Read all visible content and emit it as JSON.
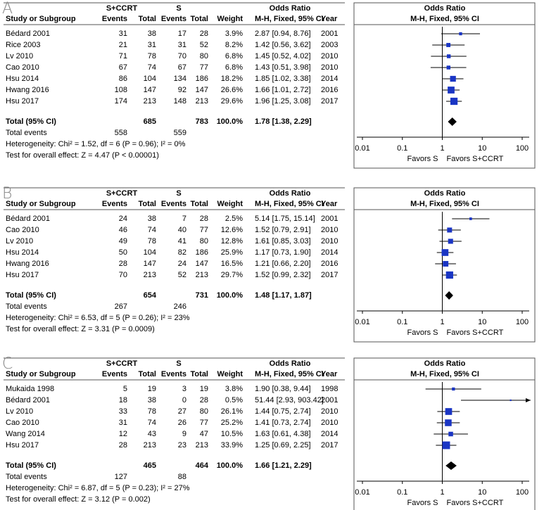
{
  "chart_data": [
    {
      "type": "forest",
      "panel": "A",
      "group1": "S+CCRT",
      "group2": "S",
      "effect_title": "Odds Ratio",
      "columns": [
        "Study or Subgroup",
        "Events",
        "Total",
        "Events",
        "Total",
        "Weight",
        "M-H, Fixed, 95% CI",
        "Year"
      ],
      "plot_title": "Odds Ratio",
      "plot_subtitle": "M-H, Fixed, 95% CI",
      "studies": [
        {
          "name": "Bédard 2001",
          "events1": 31,
          "total1": 38,
          "events2": 17,
          "total2": 28,
          "weight": 3.9,
          "weight_label": "3.9%",
          "or": 2.87,
          "lower": 0.94,
          "upper": 8.76,
          "or_label": "2.87 [0.94, 8.76]",
          "year": 2001
        },
        {
          "name": "Rice 2003",
          "events1": 21,
          "total1": 31,
          "events2": 31,
          "total2": 52,
          "weight": 8.2,
          "weight_label": "8.2%",
          "or": 1.42,
          "lower": 0.56,
          "upper": 3.62,
          "or_label": "1.42 [0.56, 3.62]",
          "year": 2003
        },
        {
          "name": "Lv 2010",
          "events1": 71,
          "total1": 78,
          "events2": 70,
          "total2": 80,
          "weight": 6.8,
          "weight_label": "6.8%",
          "or": 1.45,
          "lower": 0.52,
          "upper": 4.02,
          "or_label": "1.45 [0.52, 4.02]",
          "year": 2010
        },
        {
          "name": "Cao 2010",
          "events1": 67,
          "total1": 74,
          "events2": 67,
          "total2": 77,
          "weight": 6.8,
          "weight_label": "6.8%",
          "or": 1.43,
          "lower": 0.51,
          "upper": 3.98,
          "or_label": "1.43 [0.51, 3.98]",
          "year": 2010
        },
        {
          "name": "Hsu 2014",
          "events1": 86,
          "total1": 104,
          "events2": 134,
          "total2": 186,
          "weight": 18.2,
          "weight_label": "18.2%",
          "or": 1.85,
          "lower": 1.02,
          "upper": 3.38,
          "or_label": "1.85 [1.02, 3.38]",
          "year": 2014
        },
        {
          "name": "Hwang 2016",
          "events1": 108,
          "total1": 147,
          "events2": 92,
          "total2": 147,
          "weight": 26.6,
          "weight_label": "26.6%",
          "or": 1.66,
          "lower": 1.01,
          "upper": 2.72,
          "or_label": "1.66 [1.01, 2.72]",
          "year": 2016
        },
        {
          "name": "Hsu 2017",
          "events1": 174,
          "total1": 213,
          "events2": 148,
          "total2": 213,
          "weight": 29.6,
          "weight_label": "29.6%",
          "or": 1.96,
          "lower": 1.25,
          "upper": 3.08,
          "or_label": "1.96 [1.25, 3.08]",
          "year": 2017
        }
      ],
      "total": {
        "name": "Total (95% CI)",
        "total1": 685,
        "total2": 783,
        "weight": 100,
        "weight_label": "100.0%",
        "or": 1.78,
        "lower": 1.38,
        "upper": 2.29,
        "or_label": "1.78 [1.38, 2.29]"
      },
      "total_events": {
        "label": "Total events",
        "events1": 558,
        "events2": 559
      },
      "heterogeneity": "Heterogeneity: Chi² = 1.52, df = 6 (P = 0.96); I² = 0%",
      "overall": "Test for overall effect: Z = 4.47 (P < 0.00001)",
      "xscale": "log",
      "xlim": [
        0.01,
        100
      ],
      "xticks": [
        0.01,
        0.1,
        1,
        10,
        100
      ],
      "null_value": 1,
      "favors_left": "Favors S",
      "favors_right": "Favors S+CCRT",
      "color": "#1a35c4"
    },
    {
      "type": "forest",
      "panel": "B",
      "group1": "S+CCRT",
      "group2": "S",
      "effect_title": "Odds Ratio",
      "columns": [
        "Study or Subgroup",
        "Events",
        "Total",
        "Events",
        "Total",
        "Weight",
        "M-H, Fixed, 95% CI",
        "Year"
      ],
      "plot_title": "Odds Ratio",
      "plot_subtitle": "M-H, Fixed, 95% CI",
      "studies": [
        {
          "name": "Bédard 2001",
          "events1": 24,
          "total1": 38,
          "events2": 7,
          "total2": 28,
          "weight": 2.5,
          "weight_label": "2.5%",
          "or": 5.14,
          "lower": 1.75,
          "upper": 15.14,
          "or_label": "5.14 [1.75, 15.14]",
          "year": 2001
        },
        {
          "name": "Cao 2010",
          "events1": 46,
          "total1": 74,
          "events2": 40,
          "total2": 77,
          "weight": 12.6,
          "weight_label": "12.6%",
          "or": 1.52,
          "lower": 0.79,
          "upper": 2.91,
          "or_label": "1.52 [0.79, 2.91]",
          "year": 2010
        },
        {
          "name": "Lv 2010",
          "events1": 49,
          "total1": 78,
          "events2": 41,
          "total2": 80,
          "weight": 12.8,
          "weight_label": "12.8%",
          "or": 1.61,
          "lower": 0.85,
          "upper": 3.03,
          "or_label": "1.61 [0.85, 3.03]",
          "year": 2010
        },
        {
          "name": "Hsu 2014",
          "events1": 50,
          "total1": 104,
          "events2": 82,
          "total2": 186,
          "weight": 25.9,
          "weight_label": "25.9%",
          "or": 1.17,
          "lower": 0.73,
          "upper": 1.9,
          "or_label": "1.17 [0.73, 1.90]",
          "year": 2014
        },
        {
          "name": "Hwang 2016",
          "events1": 28,
          "total1": 147,
          "events2": 24,
          "total2": 147,
          "weight": 16.5,
          "weight_label": "16.5%",
          "or": 1.21,
          "lower": 0.66,
          "upper": 2.2,
          "or_label": "1.21 [0.66, 2.20]",
          "year": 2016
        },
        {
          "name": "Hsu 2017",
          "events1": 70,
          "total1": 213,
          "events2": 52,
          "total2": 213,
          "weight": 29.7,
          "weight_label": "29.7%",
          "or": 1.52,
          "lower": 0.99,
          "upper": 2.32,
          "or_label": "1.52 [0.99, 2.32]",
          "year": 2017
        }
      ],
      "total": {
        "name": "Total (95% CI)",
        "total1": 654,
        "total2": 731,
        "weight": 100,
        "weight_label": "100.0%",
        "or": 1.48,
        "lower": 1.17,
        "upper": 1.87,
        "or_label": "1.48 [1.17, 1.87]"
      },
      "total_events": {
        "label": "Total events",
        "events1": 267,
        "events2": 246
      },
      "heterogeneity": "Heterogeneity: Chi² = 6.53, df = 5 (P = 0.26); I² = 23%",
      "overall": "Test for overall effect: Z = 3.31 (P = 0.0009)",
      "xscale": "log",
      "xlim": [
        0.01,
        100
      ],
      "xticks": [
        0.01,
        0.1,
        1,
        10,
        100
      ],
      "null_value": 1,
      "favors_left": "Favors S",
      "favors_right": "Favors S+CCRT",
      "color": "#1a35c4"
    },
    {
      "type": "forest",
      "panel": "C",
      "group1": "S+CCRT",
      "group2": "S",
      "effect_title": "Odds Ratio",
      "columns": [
        "Study or Subgroup",
        "Events",
        "Total",
        "Events",
        "Total",
        "Weight",
        "M-H, Fixed, 95% CI",
        "Year"
      ],
      "plot_title": "Odds Ratio",
      "plot_subtitle": "M-H, Fixed, 95% CI",
      "studies": [
        {
          "name": "Mukaida 1998",
          "events1": 5,
          "total1": 19,
          "events2": 3,
          "total2": 19,
          "weight": 3.8,
          "weight_label": "3.8%",
          "or": 1.9,
          "lower": 0.38,
          "upper": 9.44,
          "or_label": "1.90 [0.38, 9.44]",
          "year": 1998
        },
        {
          "name": "Bédard 2001",
          "events1": 18,
          "total1": 38,
          "events2": 0,
          "total2": 28,
          "weight": 0.5,
          "weight_label": "0.5%",
          "or": 51.44,
          "lower": 2.93,
          "upper": 903.42,
          "or_label": "51.44 [2.93, 903.42]",
          "year": 2001
        },
        {
          "name": "Lv  2010",
          "events1": 33,
          "total1": 78,
          "events2": 27,
          "total2": 80,
          "weight": 26.1,
          "weight_label": "26.1%",
          "or": 1.44,
          "lower": 0.75,
          "upper": 2.74,
          "or_label": "1.44 [0.75, 2.74]",
          "year": 2010
        },
        {
          "name": "Cao 2010",
          "events1": 31,
          "total1": 74,
          "events2": 26,
          "total2": 77,
          "weight": 25.2,
          "weight_label": "25.2%",
          "or": 1.41,
          "lower": 0.73,
          "upper": 2.74,
          "or_label": "1.41 [0.73, 2.74]",
          "year": 2010
        },
        {
          "name": "Wang 2014",
          "events1": 12,
          "total1": 43,
          "events2": 9,
          "total2": 47,
          "weight": 10.5,
          "weight_label": "10.5%",
          "or": 1.63,
          "lower": 0.61,
          "upper": 4.38,
          "or_label": "1.63 [0.61, 4.38]",
          "year": 2014
        },
        {
          "name": "Hsu 2017",
          "events1": 28,
          "total1": 213,
          "events2": 23,
          "total2": 213,
          "weight": 33.9,
          "weight_label": "33.9%",
          "or": 1.25,
          "lower": 0.69,
          "upper": 2.25,
          "or_label": "1.25 [0.69, 2.25]",
          "year": 2017
        }
      ],
      "total": {
        "name": "Total (95% CI)",
        "total1": 465,
        "total2": 464,
        "weight": 100,
        "weight_label": "100.0%",
        "or": 1.66,
        "lower": 1.21,
        "upper": 2.29,
        "or_label": "1.66 [1.21, 2.29]"
      },
      "total_events": {
        "label": "Total events",
        "events1": 127,
        "events2": 88
      },
      "heterogeneity": "Heterogeneity: Chi² = 6.87, df = 5 (P = 0.23); I² = 27%",
      "overall": "Test for overall effect: Z = 3.12 (P = 0.002)",
      "xscale": "log",
      "xlim": [
        0.01,
        100
      ],
      "xticks": [
        0.01,
        0.1,
        1,
        10,
        100
      ],
      "null_value": 1,
      "favors_left": "Favors S",
      "favors_right": "Favors S+CCRT",
      "color": "#1a35c4"
    }
  ]
}
